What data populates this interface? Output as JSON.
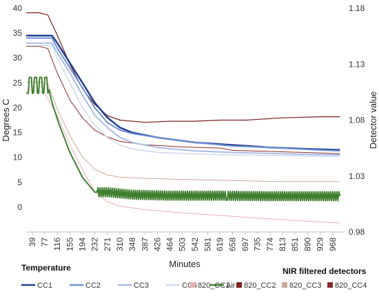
{
  "chart_data": {
    "type": "line",
    "xlabel": "Minutes",
    "ylabel_left": "Degrees C",
    "ylabel_right": "Detector value",
    "x_ticks": [
      "39",
      "77",
      "116",
      "155",
      "194",
      "232",
      "271",
      "310",
      "348",
      "387",
      "426",
      "464",
      "503",
      "542",
      "581",
      "619",
      "658",
      "697",
      "735",
      "774",
      "813",
      "851",
      "890",
      "929",
      "968"
    ],
    "x_range": [
      20,
      1000
    ],
    "y_left_ticks": [
      0,
      5,
      10,
      15,
      20,
      25,
      30,
      35,
      40
    ],
    "y_left_range": [
      -5,
      40
    ],
    "y_right_ticks": [
      "0.98",
      "1.03",
      "1.08",
      "1.13",
      "1.18"
    ],
    "y_right_range": [
      0.98,
      1.18
    ],
    "legend_group_left": "Temperature",
    "legend_group_right": "NIR filtered detectors",
    "series": [
      {
        "name": "CC1",
        "axis": "left",
        "color": "#1f3f8f",
        "width": 2.5,
        "points": [
          [
            20,
            34.5
          ],
          [
            60,
            34.5
          ],
          [
            100,
            34.5
          ],
          [
            116,
            33
          ],
          [
            155,
            29
          ],
          [
            194,
            25
          ],
          [
            232,
            21
          ],
          [
            271,
            18
          ],
          [
            310,
            16
          ],
          [
            348,
            15
          ],
          [
            426,
            14
          ],
          [
            542,
            13
          ],
          [
            658,
            12.5
          ],
          [
            774,
            12
          ],
          [
            890,
            11.7
          ],
          [
            990,
            11.5
          ]
        ]
      },
      {
        "name": "CC2",
        "axis": "left",
        "color": "#6f8fd8",
        "width": 2,
        "points": [
          [
            20,
            34
          ],
          [
            60,
            34
          ],
          [
            100,
            34
          ],
          [
            116,
            32
          ],
          [
            155,
            28
          ],
          [
            194,
            24
          ],
          [
            232,
            20
          ],
          [
            271,
            17
          ],
          [
            310,
            15.5
          ],
          [
            348,
            14.8
          ],
          [
            426,
            14
          ],
          [
            542,
            13
          ],
          [
            658,
            12.3
          ],
          [
            774,
            12
          ],
          [
            890,
            11.6
          ],
          [
            990,
            11.3
          ]
        ]
      },
      {
        "name": "CC3",
        "axis": "left",
        "color": "#a8bde6",
        "width": 2,
        "points": [
          [
            20,
            33
          ],
          [
            60,
            33
          ],
          [
            100,
            33
          ],
          [
            116,
            31
          ],
          [
            155,
            27
          ],
          [
            194,
            22.5
          ],
          [
            232,
            18.5
          ],
          [
            271,
            16
          ],
          [
            310,
            14
          ],
          [
            348,
            13
          ],
          [
            426,
            12
          ],
          [
            542,
            11.3
          ],
          [
            658,
            11
          ],
          [
            774,
            10.8
          ],
          [
            890,
            10.6
          ],
          [
            990,
            10.5
          ]
        ]
      },
      {
        "name": "CC4",
        "axis": "left",
        "color": "#cfd8ee",
        "width": 1.5,
        "points": [
          [
            20,
            32.5
          ],
          [
            60,
            32.5
          ],
          [
            100,
            32.5
          ],
          [
            116,
            30
          ],
          [
            155,
            25
          ],
          [
            194,
            20
          ],
          [
            232,
            16.5
          ],
          [
            271,
            14
          ],
          [
            310,
            12.5
          ],
          [
            348,
            11.7
          ],
          [
            426,
            11
          ],
          [
            542,
            10.7
          ],
          [
            658,
            10.5
          ],
          [
            774,
            10.4
          ],
          [
            890,
            10.3
          ],
          [
            990,
            10.2
          ]
        ]
      },
      {
        "name": "Air",
        "axis": "left",
        "color": "#3f7f2f",
        "width": 2,
        "oscillate": true,
        "points": [
          [
            20,
            24.5
          ],
          [
            87,
            24.5
          ],
          [
            100,
            21
          ],
          [
            120,
            17
          ],
          [
            155,
            11
          ],
          [
            194,
            6
          ],
          [
            232,
            3
          ],
          [
            271,
            3
          ],
          [
            348,
            2.5
          ],
          [
            464,
            2.3
          ],
          [
            619,
            2.3
          ],
          [
            774,
            2.2
          ],
          [
            929,
            2.2
          ],
          [
            990,
            2.2
          ]
        ]
      },
      {
        "name": "820_CC1",
        "axis": "right",
        "color": "#e6b0b0",
        "width": 1,
        "points": [
          [
            20,
            1.107
          ],
          [
            40,
            1.107
          ],
          [
            77,
            1.104
          ],
          [
            116,
            1.084
          ],
          [
            155,
            1.058
          ],
          [
            194,
            1.036
          ],
          [
            232,
            1.016
          ],
          [
            271,
            1.007
          ],
          [
            310,
            1.003
          ],
          [
            387,
            1.0
          ],
          [
            503,
            0.997
          ],
          [
            658,
            0.994
          ],
          [
            813,
            0.991
          ],
          [
            990,
            0.988
          ]
        ]
      },
      {
        "name": "820_CC2",
        "axis": "right",
        "color": "#7a1f1f",
        "width": 1.2,
        "points": [
          [
            20,
            1.176
          ],
          [
            60,
            1.176
          ],
          [
            87,
            1.174
          ],
          [
            116,
            1.156
          ],
          [
            155,
            1.13
          ],
          [
            194,
            1.108
          ],
          [
            232,
            1.094
          ],
          [
            271,
            1.084
          ],
          [
            310,
            1.08
          ],
          [
            387,
            1.078
          ],
          [
            464,
            1.079
          ],
          [
            542,
            1.079
          ],
          [
            619,
            1.08
          ],
          [
            700,
            1.08
          ],
          [
            813,
            1.082
          ],
          [
            929,
            1.083
          ],
          [
            990,
            1.083
          ]
        ]
      },
      {
        "name": "820_CC3",
        "axis": "right",
        "color": "#c9a898",
        "width": 1,
        "points": [
          [
            20,
            1.114
          ],
          [
            60,
            1.114
          ],
          [
            87,
            1.112
          ],
          [
            116,
            1.09
          ],
          [
            155,
            1.066
          ],
          [
            194,
            1.047
          ],
          [
            232,
            1.036
          ],
          [
            271,
            1.031
          ],
          [
            310,
            1.029
          ],
          [
            387,
            1.028
          ],
          [
            503,
            1.027
          ],
          [
            658,
            1.026
          ],
          [
            813,
            1.025
          ],
          [
            990,
            1.025
          ]
        ]
      },
      {
        "name": "820_CC4",
        "axis": "right",
        "color": "#8b2a2a",
        "width": 1,
        "points": [
          [
            20,
            1.146
          ],
          [
            60,
            1.146
          ],
          [
            87,
            1.144
          ],
          [
            116,
            1.122
          ],
          [
            155,
            1.098
          ],
          [
            194,
            1.082
          ],
          [
            232,
            1.071
          ],
          [
            271,
            1.065
          ],
          [
            310,
            1.061
          ],
          [
            387,
            1.058
          ],
          [
            503,
            1.056
          ],
          [
            619,
            1.055
          ],
          [
            658,
            1.053
          ],
          [
            774,
            1.052
          ],
          [
            890,
            1.051
          ],
          [
            990,
            1.05
          ]
        ]
      }
    ]
  }
}
